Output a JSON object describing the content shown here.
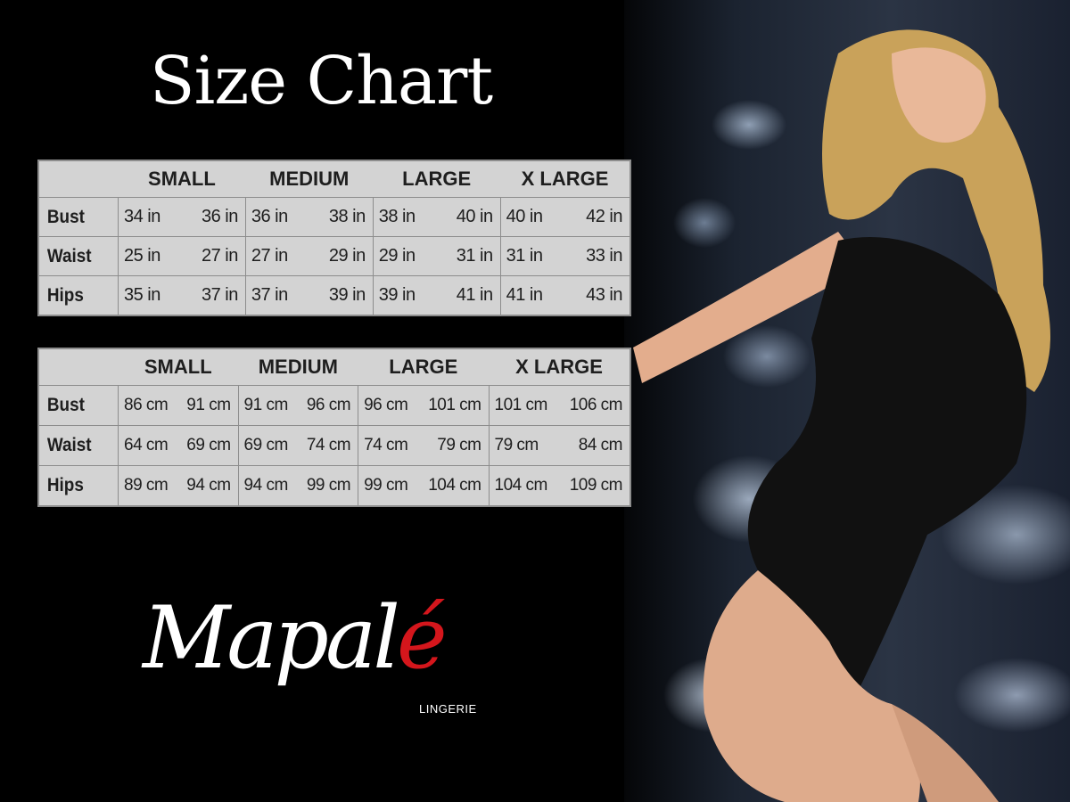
{
  "title": "Size Chart",
  "colors": {
    "background": "#000000",
    "table_bg": "#d3d3d3",
    "table_border": "#8d8d8d",
    "logo_accent": "#d4161c"
  },
  "inches_table": {
    "headers": [
      "SMALL",
      "MEDIUM",
      "LARGE",
      "X LARGE"
    ],
    "rows": [
      {
        "label": "Bust",
        "values": [
          [
            "34 in",
            "36 in"
          ],
          [
            "36 in",
            "38 in"
          ],
          [
            "38 in",
            "40 in"
          ],
          [
            "40 in",
            "42 in"
          ]
        ]
      },
      {
        "label": "Waist",
        "values": [
          [
            "25 in",
            "27 in"
          ],
          [
            "27 in",
            "29 in"
          ],
          [
            "29 in",
            "31 in"
          ],
          [
            "31 in",
            "33 in"
          ]
        ]
      },
      {
        "label": "Hips",
        "values": [
          [
            "35 in",
            "37 in"
          ],
          [
            "37 in",
            "39 in"
          ],
          [
            "39 in",
            "41 in"
          ],
          [
            "41 in",
            "43 in"
          ]
        ]
      }
    ]
  },
  "cm_table": {
    "headers": [
      "SMALL",
      "MEDIUM",
      "LARGE",
      "X LARGE"
    ],
    "rows": [
      {
        "label": "Bust",
        "values": [
          [
            "86 cm",
            "91 cm"
          ],
          [
            "91 cm",
            "96 cm"
          ],
          [
            "96 cm",
            "101 cm"
          ],
          [
            "101 cm",
            "106 cm"
          ]
        ]
      },
      {
        "label": "Waist",
        "values": [
          [
            "64 cm",
            "69 cm"
          ],
          [
            "69 cm",
            "74 cm"
          ],
          [
            "74 cm",
            "79 cm"
          ],
          [
            "79 cm",
            "84 cm"
          ]
        ]
      },
      {
        "label": "Hips",
        "values": [
          [
            "89 cm",
            "94 cm"
          ],
          [
            "94 cm",
            "99 cm"
          ],
          [
            "99 cm",
            "104 cm"
          ],
          [
            "104 cm",
            "109 cm"
          ]
        ]
      }
    ]
  },
  "logo": {
    "brand_main": "Mapal",
    "brand_accent": "é",
    "subtitle": "LINGERIE"
  },
  "photo": {
    "subject": "model-in-black-lace-bodysuit"
  }
}
